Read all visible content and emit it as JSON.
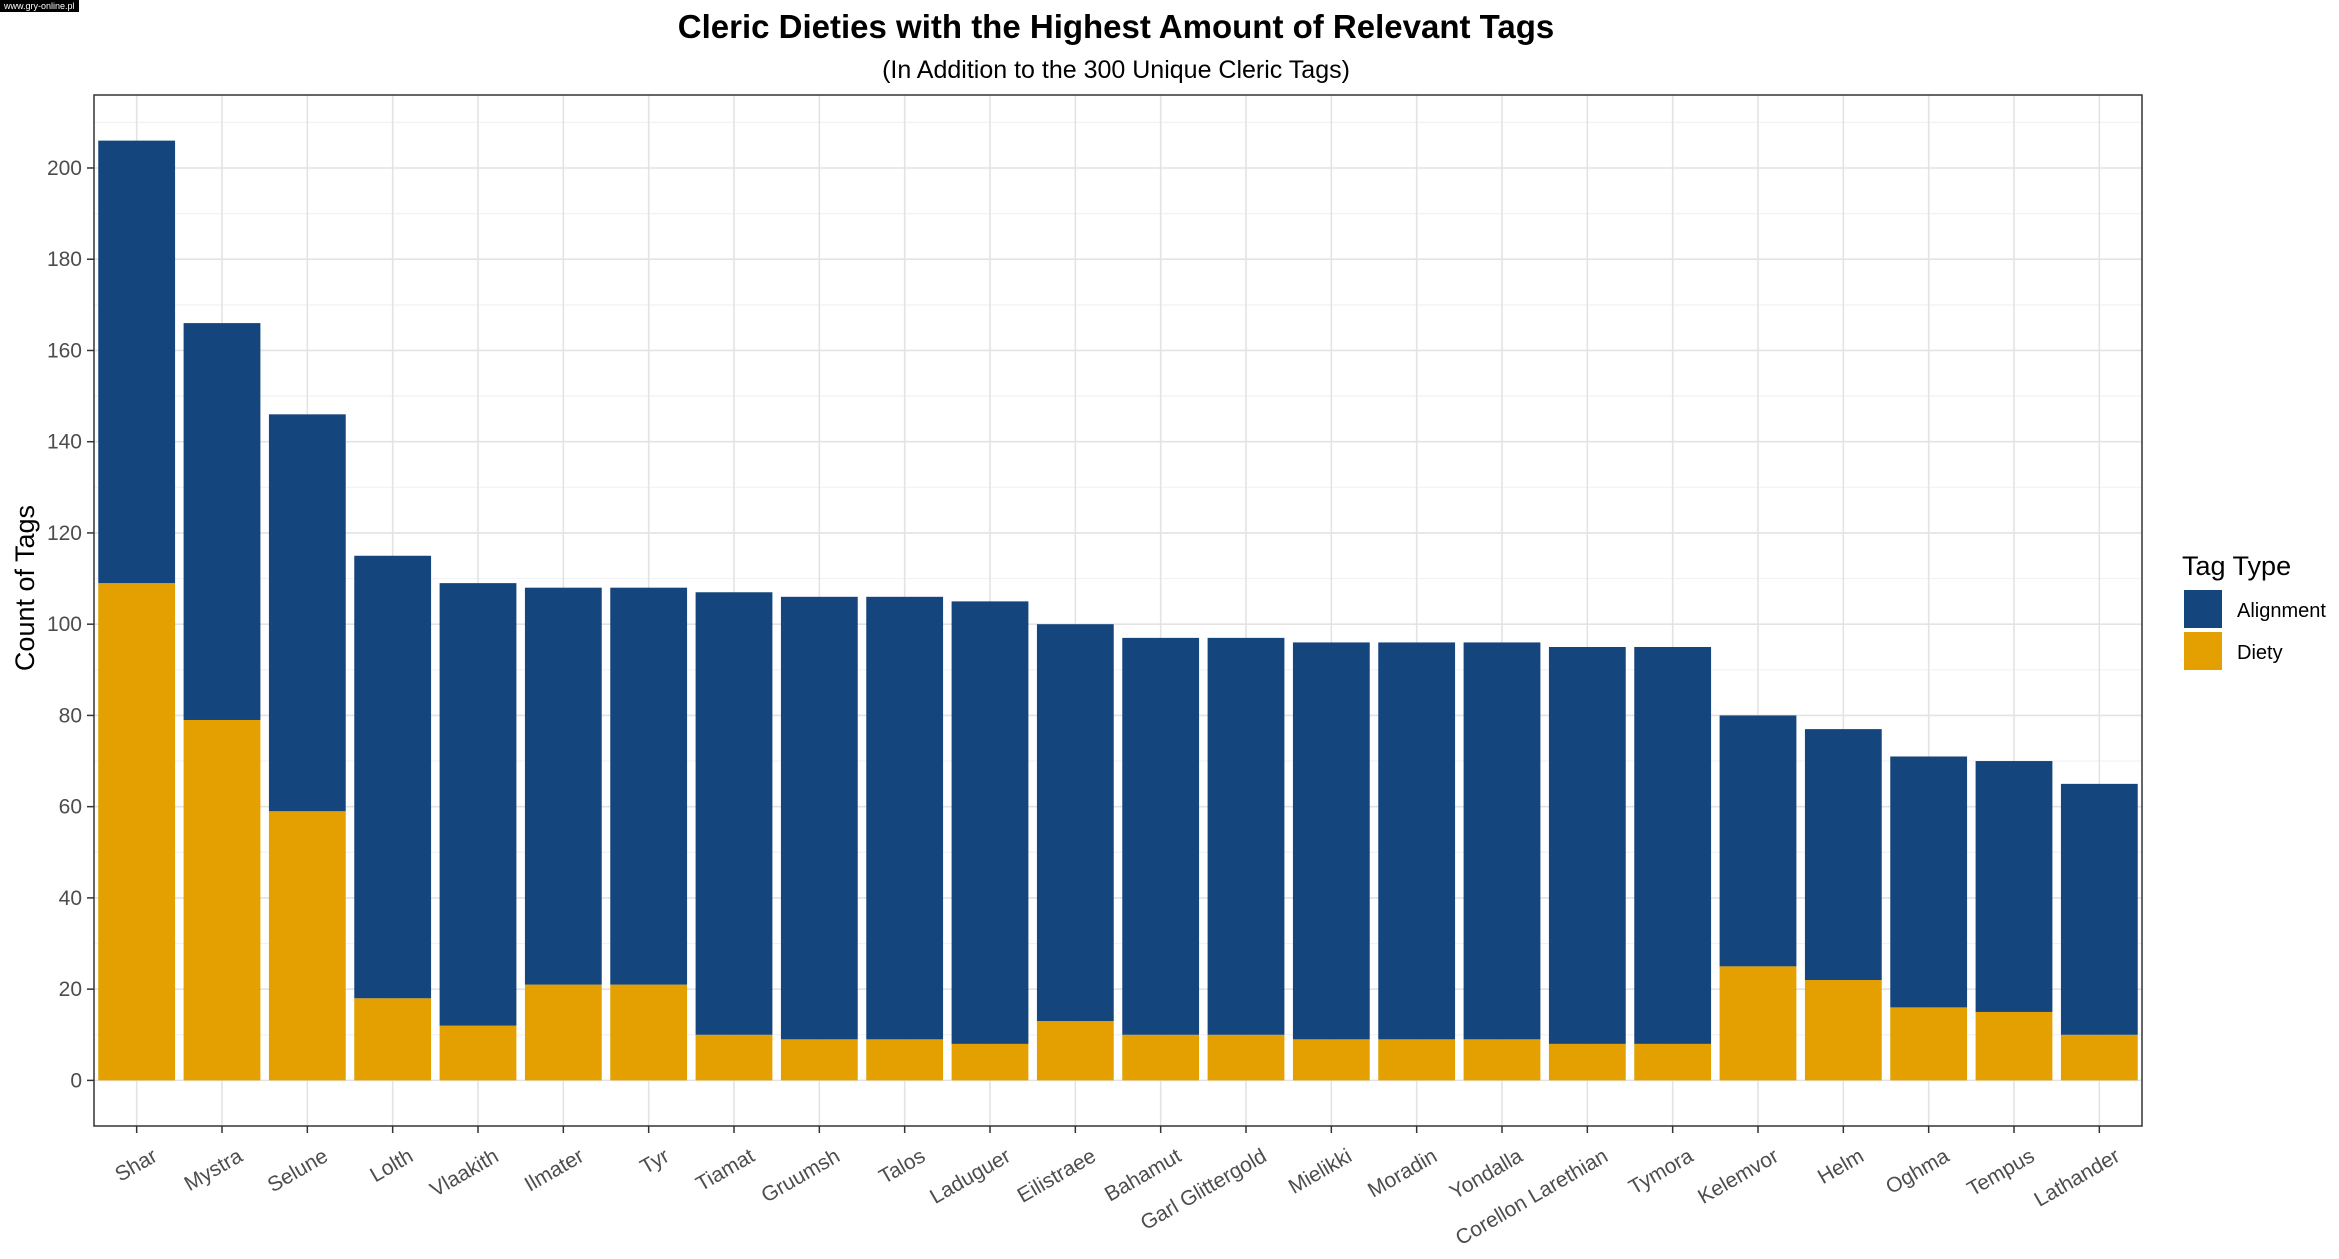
{
  "watermark": "www.gry-online.pl",
  "chart_data": {
    "type": "bar",
    "stacked": true,
    "title": "Cleric Dieties with the Highest Amount of Relevant Tags",
    "subtitle": "(In Addition to the 300 Unique Cleric Tags)",
    "xlabel": "",
    "ylabel": "Count of Tags",
    "ylim": [
      -10,
      216
    ],
    "yticks": [
      0,
      20,
      40,
      60,
      80,
      100,
      120,
      140,
      160,
      180,
      200
    ],
    "grid": true,
    "legend": {
      "title": "Tag Type",
      "position": "right"
    },
    "categories": [
      "Shar",
      "Mystra",
      "Selune",
      "Lolth",
      "Vlaakith",
      "Ilmater",
      "Tyr",
      "Tiamat",
      "Gruumsh",
      "Talos",
      "Laduguer",
      "Eilistraee",
      "Bahamut",
      "Garl Glittergold",
      "Mielikki",
      "Moradin",
      "Yondalla",
      "Corellon Larethian",
      "Tymora",
      "Kelemvor",
      "Helm",
      "Oghma",
      "Tempus",
      "Lathander"
    ],
    "series": [
      {
        "name": "Alignment",
        "color": "#14457d",
        "values": [
          97,
          87,
          87,
          97,
          97,
          87,
          87,
          97,
          97,
          97,
          97,
          87,
          87,
          87,
          87,
          87,
          87,
          87,
          87,
          55,
          55,
          55,
          55,
          55
        ]
      },
      {
        "name": "Diety",
        "color": "#e3a000",
        "values": [
          109,
          79,
          59,
          18,
          12,
          21,
          21,
          10,
          9,
          9,
          8,
          13,
          10,
          10,
          9,
          9,
          9,
          8,
          8,
          25,
          22,
          16,
          15,
          10
        ]
      }
    ]
  }
}
